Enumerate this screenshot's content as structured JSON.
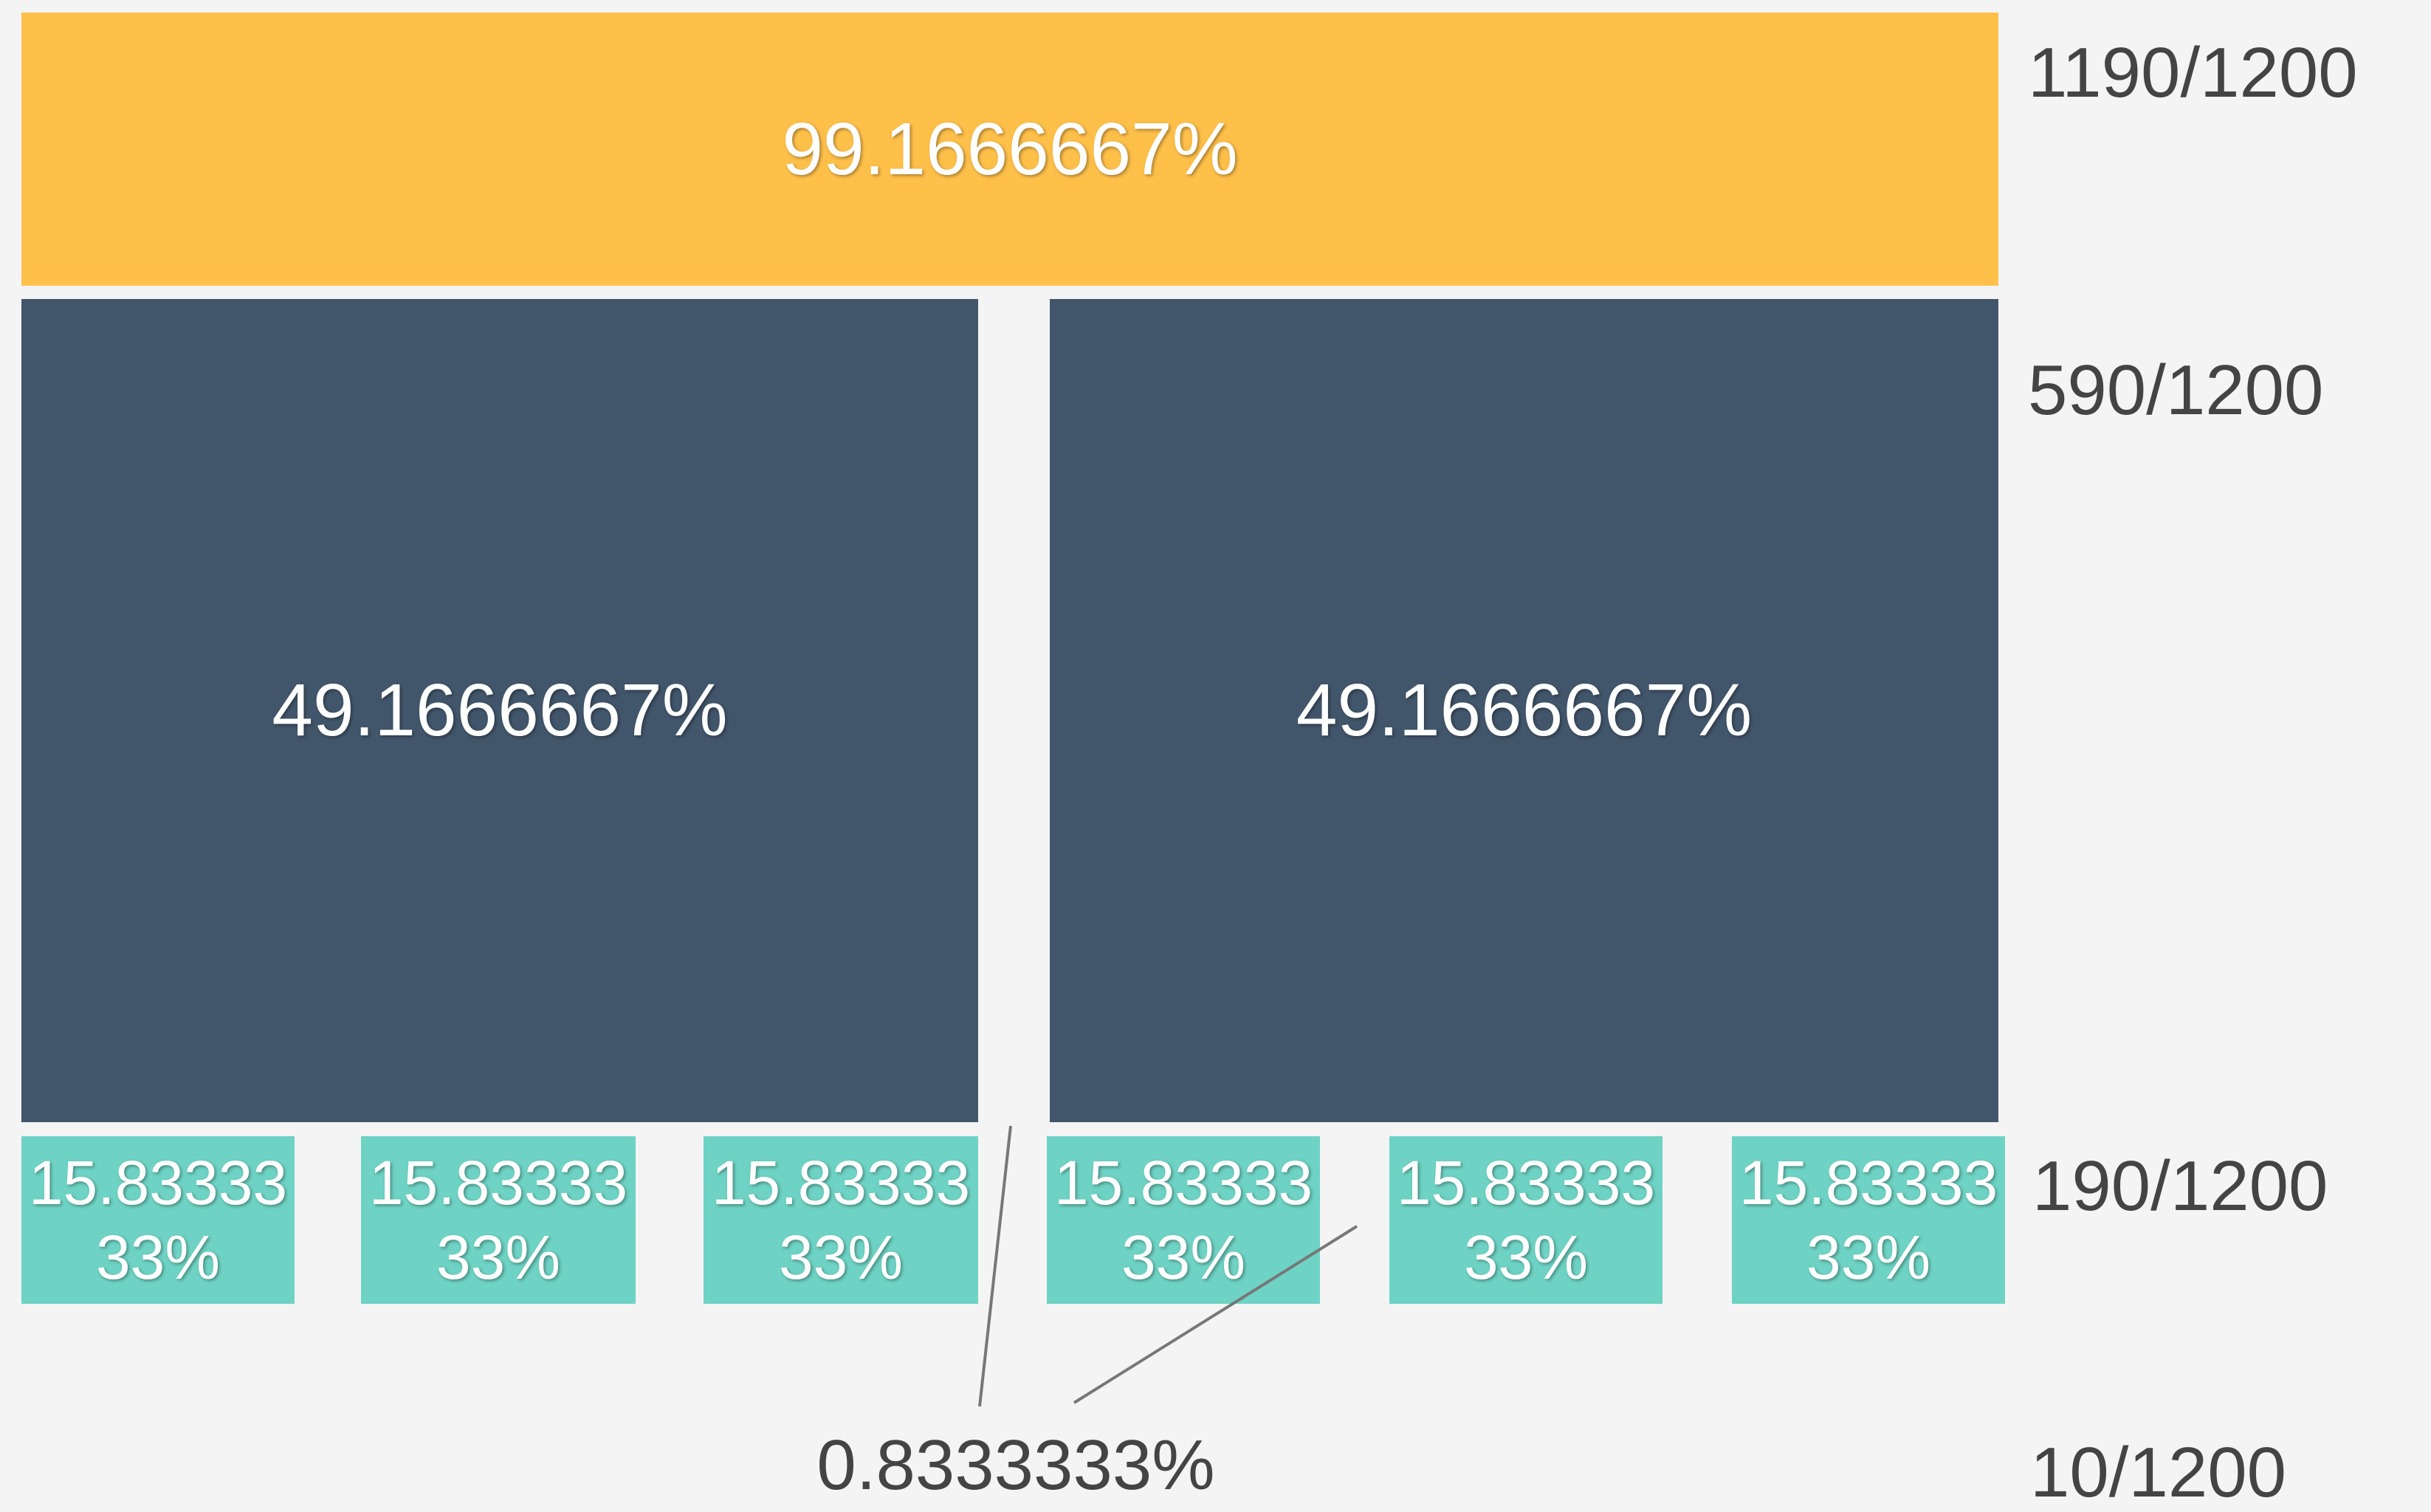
{
  "rows": [
    {
      "fraction": "1190/1200",
      "cells": [
        "99.1666667%"
      ]
    },
    {
      "fraction": "590/1200",
      "cells": [
        "49.1666667%",
        "49.1666667%"
      ]
    },
    {
      "fraction": "190/1200",
      "cells": [
        "15.8333333%",
        "15.8333333%",
        "15.8333333%",
        "15.8333333%",
        "15.8333333%",
        "15.8333333%"
      ]
    }
  ],
  "gutter": {
    "label": "0.8333333%",
    "fraction": "10/1200"
  }
}
